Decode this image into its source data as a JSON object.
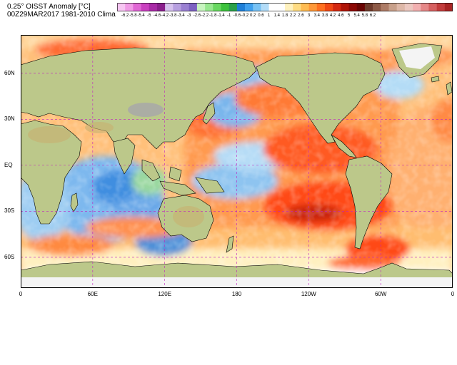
{
  "header": {
    "title_line1": "0.25° OISST Anomaly [°C]",
    "title_line2": "00Z29MAR2017  1981-2010 Clima"
  },
  "colorbar": {
    "ticks": [
      "-6.2",
      "-5.8",
      "-5.4",
      "-5",
      "-4.6",
      "-4.2",
      "-3.8",
      "-3.4",
      "-3",
      "-2.6",
      "-2.2",
      "-1.8",
      "-1.4",
      "-1",
      "-0.6",
      "-0.2",
      "0.2",
      "0.6",
      "1",
      "1.4",
      "1.8",
      "2.2",
      "2.6",
      "3",
      "3.4",
      "3.8",
      "4.2",
      "4.6",
      "5",
      "5.4",
      "5.8",
      "6.2"
    ],
    "colors": [
      "#f7c6f2",
      "#f09ae6",
      "#e066d4",
      "#c940bf",
      "#a82aa6",
      "#8a1e8c",
      "#d6c2ee",
      "#b79fe0",
      "#9a80d2",
      "#7d62c2",
      "#c8f5c0",
      "#98e890",
      "#68d860",
      "#3cc23c",
      "#2aa04a",
      "#1e7fd8",
      "#3fa0ee",
      "#78c2f4",
      "#b2dcf8",
      "#ffffff",
      "#ffffff",
      "#fff2bf",
      "#ffdc82",
      "#ffbc52",
      "#ff9838",
      "#ff7020",
      "#f04814",
      "#d42810",
      "#b01408",
      "#8c0804",
      "#6a0402",
      "#6e3a2a",
      "#8e5a46",
      "#ae7c66",
      "#c8a08a",
      "#deb8a8",
      "#ecc8c0",
      "#f2b0b0",
      "#e68888",
      "#d66060",
      "#c23c3c",
      "#a82424"
    ]
  },
  "map": {
    "lat_labels": [
      "60N",
      "30N",
      "EQ",
      "30S",
      "60S"
    ],
    "lon_labels": [
      "0",
      "60E",
      "120E",
      "180",
      "120W",
      "60W",
      "0"
    ],
    "lat_range": [
      -80,
      85
    ],
    "lon_range": [
      0,
      360
    ]
  }
}
